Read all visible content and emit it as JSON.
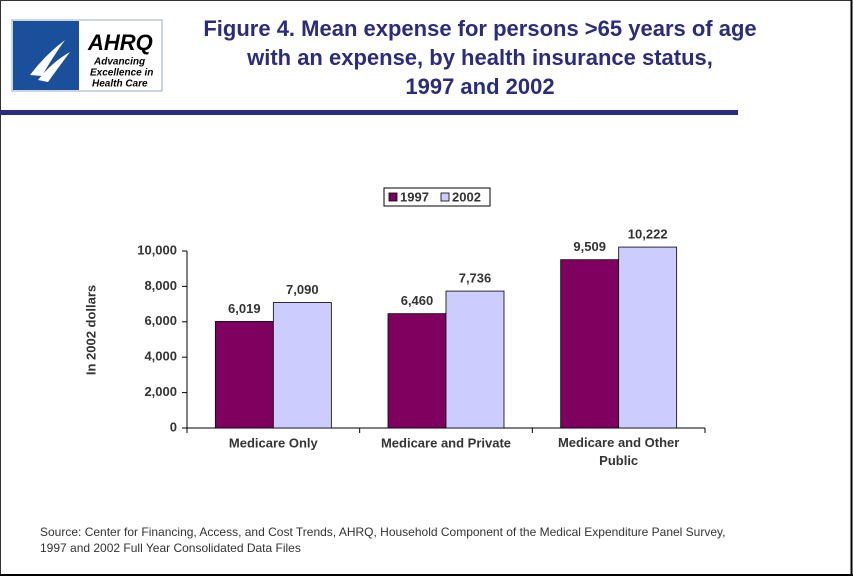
{
  "header": {
    "logo_name": "AHRQ",
    "logo_tagline": [
      "Advancing",
      "Excellence in",
      "Health Care"
    ]
  },
  "chart_data": {
    "type": "bar",
    "title": [
      "Figure 4. Mean expense for persons >65 years of age",
      "with an expense, by health insurance status,",
      "1997 and 2002"
    ],
    "y_label": "In 2002 dollars",
    "categories": [
      "Medicare Only",
      "Medicare and Private",
      "Medicare and Other Public"
    ],
    "series": [
      {
        "name": "1997",
        "color": "#800060",
        "values": [
          6019,
          6460,
          9509
        ],
        "value_labels": [
          "6,019",
          "6,460",
          "9,509"
        ]
      },
      {
        "name": "2002",
        "color": "#ccccff",
        "values": [
          7090,
          7736,
          10222
        ],
        "value_labels": [
          "7,090",
          "7,736",
          "10,222"
        ]
      }
    ],
    "ylim": [
      0,
      10000
    ],
    "yticks": [
      0,
      {
        "value": 2000,
        "label": "2,000"
      },
      {
        "value": 4000,
        "label": "4,000"
      },
      {
        "value": 6000,
        "label": "6,000"
      },
      {
        "value": 8000,
        "label": "8,000"
      },
      {
        "value": 10000,
        "label": "10,000"
      }
    ],
    "legend": "top",
    "source": [
      "Source: Center for Financing, Access, and Cost Trends, AHRQ, Household Component of the Medical Expenditure Panel Survey,",
      "1997 and 2002 Full Year Consolidated Data Files"
    ]
  }
}
